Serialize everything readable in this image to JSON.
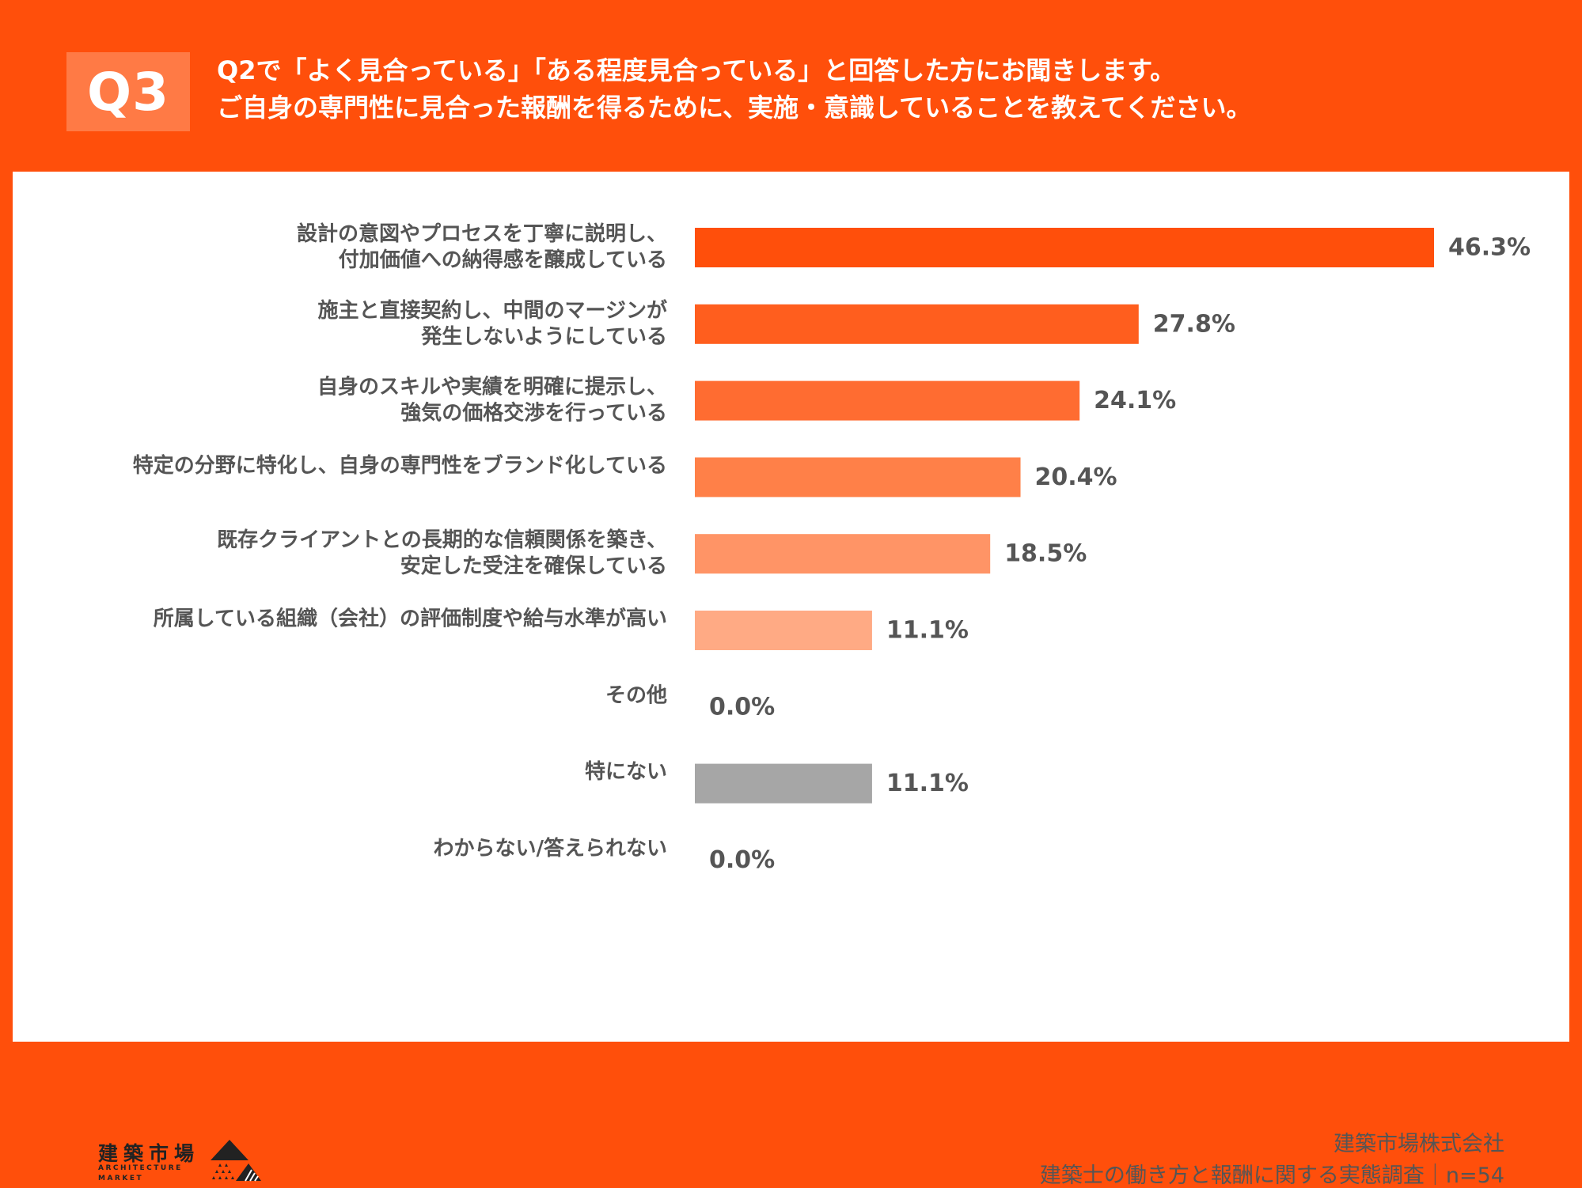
{
  "header": {
    "badge": "Q3",
    "question_line_1": "Q2で「よく見合っている」「ある程度見合っている」と回答した方にお聞きします。",
    "question_line_2": "ご自身の専門性に見合った報酬を得るために、実施・意識していることを教えてください。"
  },
  "chart_data": {
    "type": "bar",
    "orientation": "horizontal",
    "categories": [
      [
        "設計の意図やプロセスを丁寧に説明し、",
        "付加価値への納得感を醸成している"
      ],
      [
        "施主と直接契約し、中間のマージンが",
        "発生しないようにしている"
      ],
      [
        "自身のスキルや実績を明確に提示し、",
        "強気の価格交渉を行っている"
      ],
      [
        "特定の分野に特化し、自身の専門性をブランド化している"
      ],
      [
        "既存クライアントとの長期的な信頼関係を築き、",
        "安定した受注を確保している"
      ],
      [
        "所属している組織（会社）の評価制度や給与水準が高い"
      ],
      [
        "その他"
      ],
      [
        "特にない"
      ],
      [
        "わからない/答えられない"
      ]
    ],
    "values": [
      46.3,
      27.8,
      24.1,
      20.4,
      18.5,
      11.1,
      0.0,
      11.1,
      0.0
    ],
    "value_labels": [
      "46.3%",
      "27.8%",
      "24.1%",
      "20.4%",
      "18.5%",
      "11.1%",
      "0.0%",
      "11.1%",
      "0.0%"
    ],
    "bar_colors": [
      "#FF4F0B",
      "#FF5E1E",
      "#FF6C31",
      "#FF8048",
      "#FF9466",
      "#FFAA84",
      "#FFAA84",
      "#A6A6A6",
      "#A6A6A6"
    ],
    "xlim": [
      0,
      46.3
    ],
    "grid": false,
    "legend": "none"
  },
  "footer": {
    "logo_kanji": "建築市場",
    "logo_sub_1": "ARCHITECTURE",
    "logo_sub_2": "MARKET",
    "company": "建築市場株式会社",
    "survey": "建築士の働き方と報酬に関する実態調査｜n=54"
  },
  "colors": {
    "accent": "#FF4F0B",
    "badge": "#FF7A45",
    "label_text": "#555555"
  }
}
